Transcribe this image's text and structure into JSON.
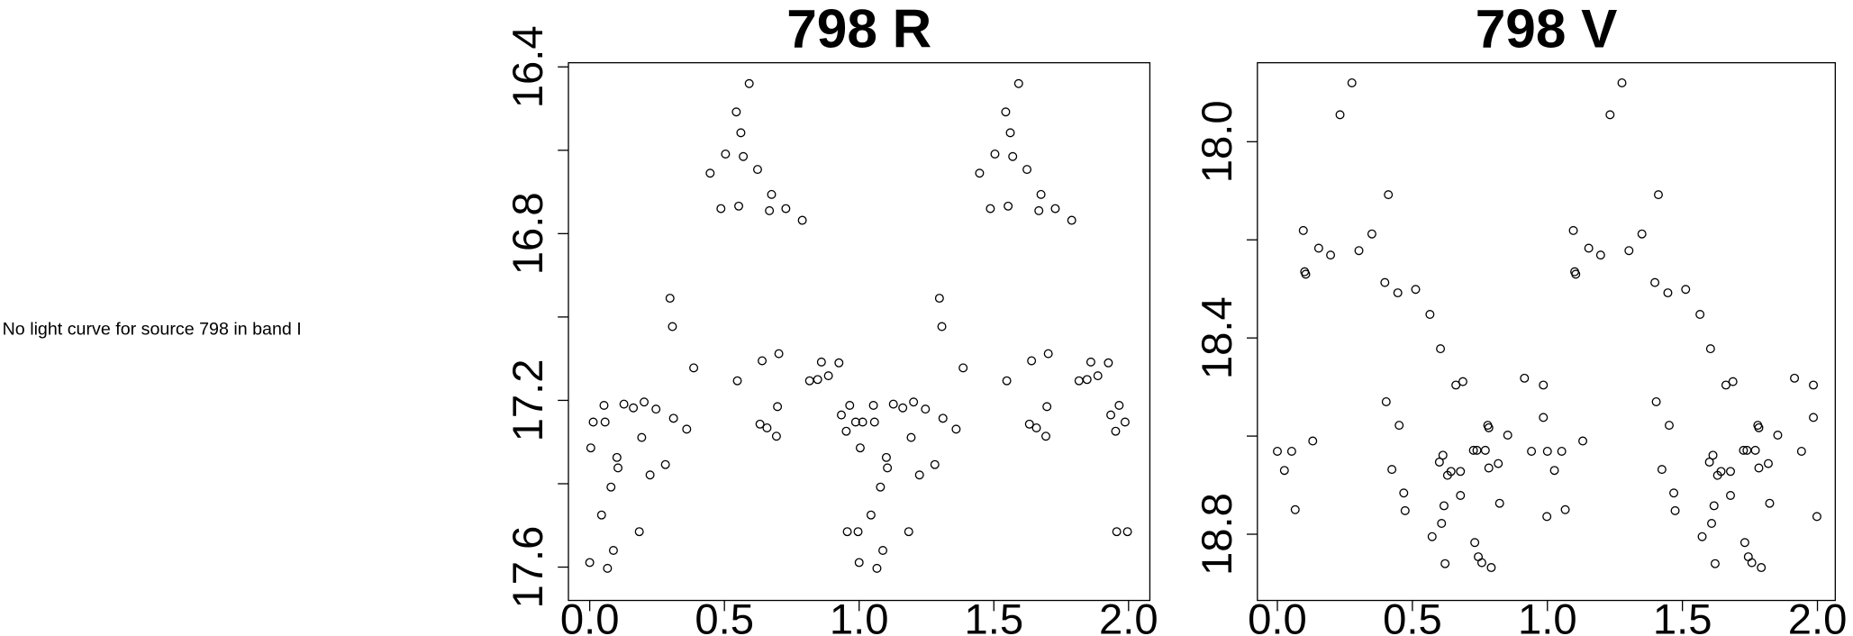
{
  "message": "No light curve for source 798 in band I",
  "chart_data": [
    {
      "type": "scatter",
      "title": "798 R",
      "xlim": [
        -0.079,
        2.079
      ],
      "ylim": [
        17.68,
        16.39
      ],
      "xticks": [
        {
          "value": 0,
          "label": "0.0"
        },
        0.5,
        {
          "value": 1,
          "label": "1.0"
        },
        1.5,
        {
          "value": 2,
          "label": "2.0"
        }
      ],
      "yticks": [
        16.4,
        16.8,
        17.2,
        17.6
      ],
      "yminor_ticks": [
        16.6,
        17.0,
        17.4
      ],
      "color": "#000000",
      "x": [
        0.0,
        0.004,
        0.013,
        0.044,
        0.053,
        0.057,
        0.066,
        0.079,
        0.088,
        0.101,
        0.105,
        0.127,
        0.162,
        0.184,
        0.193,
        0.202,
        0.224,
        0.246,
        0.281,
        0.298,
        0.307,
        0.311,
        0.36,
        0.386,
        0.447,
        0.487,
        0.504,
        0.544,
        0.548,
        0.553,
        0.561,
        0.57,
        0.592,
        0.623,
        0.632,
        0.64,
        0.658,
        0.667,
        0.675,
        0.693,
        0.697,
        0.702,
        0.728,
        0.789,
        0.816,
        0.846,
        0.86,
        0.886,
        0.925,
        0.934,
        0.952,
        0.956,
        0.965,
        0.987,
        0.996,
        1.0,
        1.004,
        1.013,
        1.044,
        1.053,
        1.057,
        1.066,
        1.079,
        1.088,
        1.101,
        1.105,
        1.127,
        1.162,
        1.184,
        1.193,
        1.202,
        1.224,
        1.246,
        1.281,
        1.298,
        1.307,
        1.311,
        1.36,
        1.386,
        1.447,
        1.487,
        1.504,
        1.544,
        1.548,
        1.553,
        1.561,
        1.57,
        1.592,
        1.623,
        1.632,
        1.64,
        1.658,
        1.667,
        1.675,
        1.693,
        1.697,
        1.702,
        1.728,
        1.789,
        1.816,
        1.846,
        1.86,
        1.886,
        1.925,
        1.934,
        1.952,
        1.956,
        1.965,
        1.987,
        1.996
      ],
      "y": [
        17.589,
        17.314,
        17.252,
        17.475,
        17.212,
        17.252,
        17.603,
        17.408,
        17.56,
        17.337,
        17.362,
        17.209,
        17.218,
        17.515,
        17.289,
        17.204,
        17.379,
        17.221,
        17.354,
        16.955,
        17.023,
        17.243,
        17.269,
        17.122,
        16.655,
        16.74,
        16.609,
        16.508,
        17.153,
        16.734,
        16.558,
        16.615,
        16.44,
        16.646,
        17.257,
        17.105,
        17.266,
        16.745,
        16.706,
        17.286,
        17.215,
        17.088,
        16.74,
        16.768,
        17.153,
        17.15,
        17.108,
        17.141,
        17.11,
        17.235,
        17.274,
        17.515,
        17.212,
        17.252,
        17.515,
        17.589,
        17.314,
        17.252,
        17.475,
        17.212,
        17.252,
        17.603,
        17.408,
        17.56,
        17.337,
        17.362,
        17.209,
        17.218,
        17.515,
        17.289,
        17.204,
        17.379,
        17.221,
        17.354,
        16.955,
        17.023,
        17.243,
        17.269,
        17.122,
        16.655,
        16.74,
        16.609,
        16.508,
        17.153,
        16.734,
        16.558,
        16.615,
        16.44,
        16.646,
        17.257,
        17.105,
        17.266,
        16.745,
        16.706,
        17.286,
        17.215,
        17.088,
        16.74,
        16.768,
        17.153,
        17.15,
        17.108,
        17.141,
        17.11,
        17.235,
        17.274,
        17.515,
        17.212,
        17.252,
        17.515
      ]
    },
    {
      "type": "scatter",
      "title": "798 V",
      "xlim": [
        -0.074,
        2.066
      ],
      "ylim": [
        18.935,
        17.839
      ],
      "xticks": [
        {
          "value": 0,
          "label": "0.0"
        },
        0.5,
        {
          "value": 1,
          "label": "1.0"
        },
        1.5,
        {
          "value": 2,
          "label": "2.0"
        }
      ],
      "yticks": [
        {
          "value": 18,
          "label": "18.0"
        },
        18.4,
        18.8
      ],
      "yminor_ticks": [
        18.2,
        18.6
      ],
      "color": "#000000",
      "x": [
        0.0,
        0.026,
        0.053,
        0.066,
        0.096,
        0.101,
        0.105,
        0.131,
        0.153,
        0.197,
        0.232,
        0.276,
        0.302,
        0.35,
        0.398,
        0.403,
        0.411,
        0.424,
        0.446,
        0.451,
        0.468,
        0.473,
        0.512,
        0.565,
        0.573,
        0.6,
        0.604,
        0.608,
        0.613,
        0.617,
        0.621,
        0.63,
        0.643,
        0.661,
        0.678,
        0.678,
        0.687,
        0.726,
        0.731,
        0.739,
        0.744,
        0.757,
        0.77,
        0.779,
        0.783,
        0.783,
        0.792,
        0.818,
        0.823,
        0.853,
        0.915,
        0.941,
        0.985,
        0.985,
        0.998,
        1.0,
        1.026,
        1.053,
        1.066,
        1.096,
        1.101,
        1.105,
        1.131,
        1.153,
        1.197,
        1.232,
        1.276,
        1.302,
        1.35,
        1.398,
        1.403,
        1.411,
        1.424,
        1.446,
        1.451,
        1.468,
        1.473,
        1.512,
        1.565,
        1.573,
        1.6,
        1.604,
        1.608,
        1.613,
        1.617,
        1.621,
        1.63,
        1.643,
        1.661,
        1.678,
        1.678,
        1.687,
        1.726,
        1.731,
        1.739,
        1.744,
        1.757,
        1.77,
        1.779,
        1.783,
        1.783,
        1.792,
        1.818,
        1.823,
        1.853,
        1.915,
        1.941,
        1.985,
        1.985,
        1.998
      ],
      "y": [
        18.631,
        18.67,
        18.631,
        18.75,
        18.181,
        18.265,
        18.27,
        18.61,
        18.217,
        18.231,
        17.945,
        17.88,
        18.222,
        18.188,
        18.287,
        18.53,
        18.108,
        18.668,
        18.308,
        18.578,
        18.716,
        18.752,
        18.301,
        18.352,
        18.805,
        18.653,
        18.422,
        18.778,
        18.639,
        18.742,
        18.86,
        18.68,
        18.672,
        18.496,
        18.672,
        18.721,
        18.489,
        18.629,
        18.817,
        18.629,
        18.846,
        18.858,
        18.629,
        18.578,
        18.583,
        18.665,
        18.868,
        18.656,
        18.737,
        18.598,
        18.482,
        18.631,
        18.496,
        18.562,
        18.764,
        18.631,
        18.67,
        18.631,
        18.75,
        18.181,
        18.265,
        18.27,
        18.61,
        18.217,
        18.231,
        17.945,
        17.88,
        18.222,
        18.188,
        18.287,
        18.53,
        18.108,
        18.668,
        18.308,
        18.578,
        18.716,
        18.752,
        18.301,
        18.352,
        18.805,
        18.653,
        18.422,
        18.778,
        18.639,
        18.742,
        18.86,
        18.68,
        18.672,
        18.496,
        18.672,
        18.721,
        18.489,
        18.629,
        18.817,
        18.629,
        18.846,
        18.858,
        18.629,
        18.578,
        18.583,
        18.665,
        18.868,
        18.656,
        18.737,
        18.598,
        18.482,
        18.631,
        18.496,
        18.562,
        18.764
      ]
    }
  ]
}
